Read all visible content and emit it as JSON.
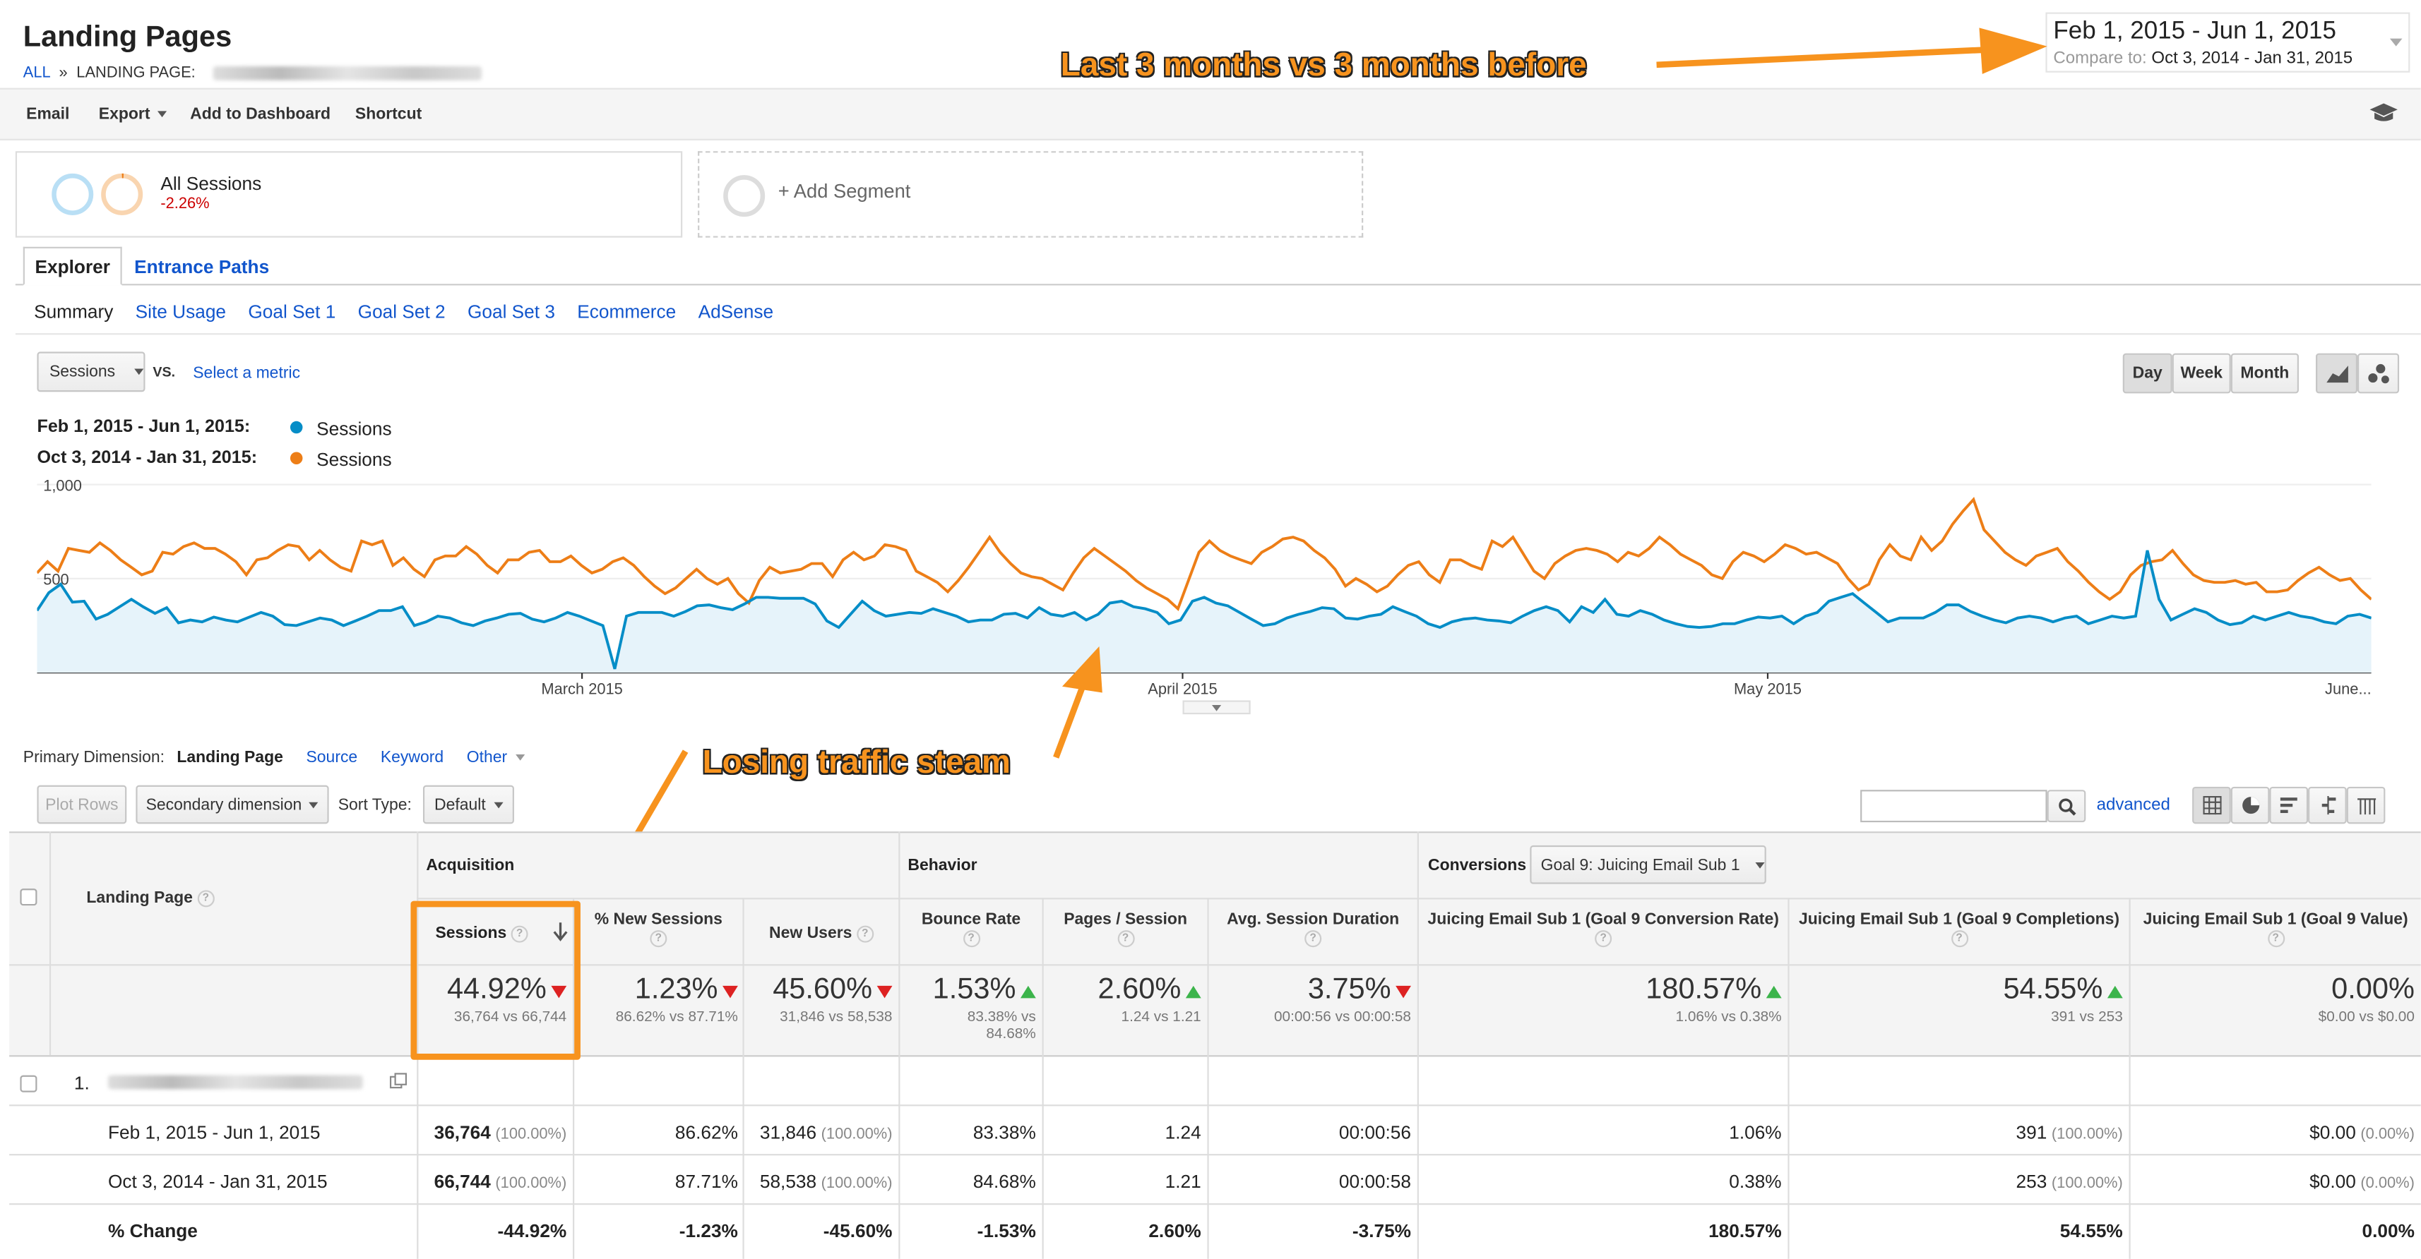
{
  "header": {
    "title": "Landing Pages",
    "breadcrumb_all": "ALL",
    "breadcrumb_sep": "»",
    "breadcrumb_label": "LANDING PAGE:"
  },
  "date_range": {
    "main": "Feb 1, 2015 - Jun 1, 2015",
    "compare_label": "Compare to:",
    "compare": "Oct 3, 2014 - Jan 31, 2015"
  },
  "annotations": {
    "top": "Last 3 months vs 3 months before",
    "middle": "Losing traffic steam"
  },
  "toolbar": {
    "email": "Email",
    "export": "Export",
    "add_dashboard": "Add to Dashboard",
    "shortcut": "Shortcut",
    "icon": "graduation-cap-icon"
  },
  "segment": {
    "name": "All Sessions",
    "change": "-2.26%",
    "add": "+ Add Segment"
  },
  "tabs": [
    "Explorer",
    "Entrance Paths"
  ],
  "subtabs": [
    "Summary",
    "Site Usage",
    "Goal Set 1",
    "Goal Set 2",
    "Goal Set 3",
    "Ecommerce",
    "AdSense"
  ],
  "metric": {
    "selected": "Sessions",
    "vs": "VS.",
    "select": "Select a metric"
  },
  "granularity": [
    "Day",
    "Week",
    "Month"
  ],
  "legend": {
    "range1": "Feb 1, 2015 - Jun 1, 2015:",
    "range2": "Oct 3, 2014 - Jan 31, 2015:",
    "series": "Sessions"
  },
  "chart_data": {
    "type": "line",
    "ylabels": [
      "1,000",
      "500"
    ],
    "xlabels": [
      "March 2015",
      "April 2015",
      "May 2015",
      "June..."
    ],
    "ylim": [
      0,
      1050
    ],
    "series": [
      {
        "name": "Sessions",
        "range": "Feb 1, 2015 - Jun 1, 2015",
        "color": "#058dc7",
        "fill": true,
        "values": [
          330,
          425,
          470,
          375,
          380,
          285,
          310,
          350,
          390,
          350,
          315,
          345,
          265,
          280,
          270,
          295,
          280,
          270,
          295,
          320,
          300,
          255,
          250,
          270,
          290,
          280,
          250,
          275,
          300,
          330,
          330,
          350,
          250,
          270,
          300,
          290,
          265,
          250,
          275,
          290,
          310,
          315,
          285,
          270,
          290,
          320,
          300,
          275,
          250,
          20,
          300,
          320,
          320,
          320,
          300,
          325,
          355,
          360,
          345,
          335,
          365,
          400,
          400,
          395,
          395,
          395,
          365,
          275,
          240,
          310,
          380,
          330,
          300,
          310,
          320,
          315,
          340,
          320,
          300,
          270,
          280,
          280,
          310,
          315,
          290,
          345,
          310,
          300,
          320,
          280,
          310,
          370,
          380,
          350,
          340,
          320,
          260,
          280,
          380,
          400,
          370,
          355,
          320,
          285,
          250,
          260,
          290,
          310,
          325,
          345,
          340,
          290,
          285,
          300,
          310,
          350,
          325,
          300,
          260,
          240,
          270,
          285,
          290,
          280,
          275,
          265,
          300,
          330,
          350,
          330,
          270,
          350,
          320,
          390,
          310,
          300,
          330,
          310,
          280,
          260,
          245,
          240,
          245,
          260,
          260,
          280,
          295,
          290,
          300,
          260,
          300,
          320,
          380,
          400,
          420,
          370,
          320,
          270,
          290,
          290,
          290,
          320,
          360,
          360,
          325,
          300,
          280,
          265,
          290,
          300,
          290,
          270,
          290,
          300,
          260,
          280,
          300,
          290,
          300,
          650,
          390,
          280,
          310,
          340,
          320,
          280,
          255,
          265,
          300,
          280,
          300,
          320,
          300,
          290,
          270,
          260,
          300,
          310,
          290
        ]
      },
      {
        "name": "Sessions",
        "range": "Oct 3, 2014 - Jan 31, 2015",
        "color": "#ed7e17",
        "values": [
          530,
          590,
          540,
          660,
          650,
          640,
          690,
          650,
          600,
          560,
          520,
          540,
          640,
          630,
          670,
          690,
          660,
          660,
          630,
          590,
          520,
          600,
          610,
          650,
          680,
          670,
          600,
          650,
          600,
          560,
          540,
          700,
          680,
          700,
          570,
          610,
          550,
          510,
          600,
          620,
          620,
          670,
          630,
          570,
          530,
          600,
          600,
          640,
          650,
          590,
          590,
          620,
          570,
          530,
          550,
          590,
          610,
          570,
          510,
          460,
          420,
          450,
          500,
          550,
          500,
          470,
          500,
          420,
          370,
          490,
          560,
          530,
          540,
          550,
          580,
          580,
          510,
          600,
          640,
          600,
          620,
          680,
          670,
          650,
          540,
          510,
          480,
          430,
          490,
          560,
          640,
          720,
          640,
          580,
          530,
          510,
          500,
          470,
          440,
          530,
          610,
          660,
          620,
          580,
          540,
          490,
          450,
          420,
          390,
          340,
          490,
          640,
          700,
          650,
          620,
          600,
          580,
          640,
          670,
          710,
          720,
          700,
          650,
          610,
          550,
          460,
          500,
          470,
          430,
          460,
          520,
          570,
          590,
          520,
          480,
          600,
          600,
          570,
          550,
          700,
          670,
          720,
          630,
          540,
          500,
          580,
          620,
          650,
          660,
          650,
          630,
          590,
          640,
          620,
          660,
          720,
          680,
          630,
          600,
          570,
          520,
          500,
          590,
          640,
          620,
          590,
          630,
          680,
          660,
          630,
          640,
          610,
          580,
          500,
          440,
          470,
          600,
          680,
          620,
          600,
          720,
          650,
          700,
          790,
          860,
          920,
          760,
          700,
          640,
          600,
          570,
          620,
          640,
          660,
          590,
          540,
          480,
          430,
          390,
          430,
          520,
          570,
          590,
          600,
          650,
          580,
          520,
          490,
          480,
          480,
          490,
          470,
          480,
          430,
          430,
          440,
          490,
          530,
          560,
          520,
          490,
          500,
          440,
          390
        ]
      }
    ]
  },
  "dimensions": {
    "label": "Primary Dimension:",
    "selected": "Landing Page",
    "source": "Source",
    "keyword": "Keyword",
    "other": "Other"
  },
  "table_controls": {
    "plot_rows": "Plot Rows",
    "secondary": "Secondary dimension",
    "sort_label": "Sort Type:",
    "sort": "Default",
    "advanced": "advanced"
  },
  "table": {
    "groups": {
      "acquisition": "Acquisition",
      "behavior": "Behavior",
      "conversions": "Conversions",
      "goal": "Goal 9: Juicing Email Sub 1"
    },
    "dim_header": "Landing Page",
    "columns": [
      "Sessions",
      "% New Sessions",
      "New Users",
      "Bounce Rate",
      "Pages / Session",
      "Avg. Session Duration",
      "Juicing Email Sub 1 (Goal 9 Conversion Rate)",
      "Juicing Email Sub 1 (Goal 9 Completions)",
      "Juicing Email Sub 1 (Goal 9 Value)"
    ],
    "totals": [
      {
        "big": "44.92%",
        "sub": "36,764 vs 66,744",
        "dir": "dn"
      },
      {
        "big": "1.23%",
        "sub": "86.62% vs 87.71%",
        "dir": "dn"
      },
      {
        "big": "45.60%",
        "sub": "31,846 vs 58,538",
        "dir": "dn"
      },
      {
        "big": "1.53%",
        "sub": "83.38% vs",
        "sub2": "84.68%",
        "dir": "up"
      },
      {
        "big": "2.60%",
        "sub": "1.24 vs 1.21",
        "dir": "up"
      },
      {
        "big": "3.75%",
        "sub": "00:00:56 vs 00:00:58",
        "dir": "dn"
      },
      {
        "big": "180.57%",
        "sub": "1.06% vs 0.38%",
        "dir": "up"
      },
      {
        "big": "54.55%",
        "sub": "391 vs 253",
        "dir": "up"
      },
      {
        "big": "0.00%",
        "sub": "$0.00 vs $0.00",
        "dir": ""
      }
    ],
    "row_index": "1.",
    "rows": [
      {
        "label": "Feb 1, 2015 - Jun 1, 2015",
        "cells": [
          [
            "36,764",
            "(100.00%)"
          ],
          [
            "86.62%",
            ""
          ],
          [
            "31,846",
            "(100.00%)"
          ],
          [
            "83.38%",
            ""
          ],
          [
            "1.24",
            ""
          ],
          [
            "00:00:56",
            ""
          ],
          [
            "1.06%",
            ""
          ],
          [
            "391",
            "(100.00%)"
          ],
          [
            "$0.00",
            "(0.00%)"
          ]
        ]
      },
      {
        "label": "Oct 3, 2014 - Jan 31, 2015",
        "cells": [
          [
            "66,744",
            "(100.00%)"
          ],
          [
            "87.71%",
            ""
          ],
          [
            "58,538",
            "(100.00%)"
          ],
          [
            "84.68%",
            ""
          ],
          [
            "1.21",
            ""
          ],
          [
            "00:00:58",
            ""
          ],
          [
            "0.38%",
            ""
          ],
          [
            "253",
            "(100.00%)"
          ],
          [
            "$0.00",
            "(0.00%)"
          ]
        ]
      },
      {
        "label": "% Change",
        "cells": [
          [
            "-44.92%",
            ""
          ],
          [
            "-1.23%",
            ""
          ],
          [
            "-45.60%",
            ""
          ],
          [
            "-1.53%",
            ""
          ],
          [
            "2.60%",
            ""
          ],
          [
            "-3.75%",
            ""
          ],
          [
            "180.57%",
            ""
          ],
          [
            "54.55%",
            ""
          ],
          [
            "0.00%",
            ""
          ]
        ]
      }
    ]
  }
}
